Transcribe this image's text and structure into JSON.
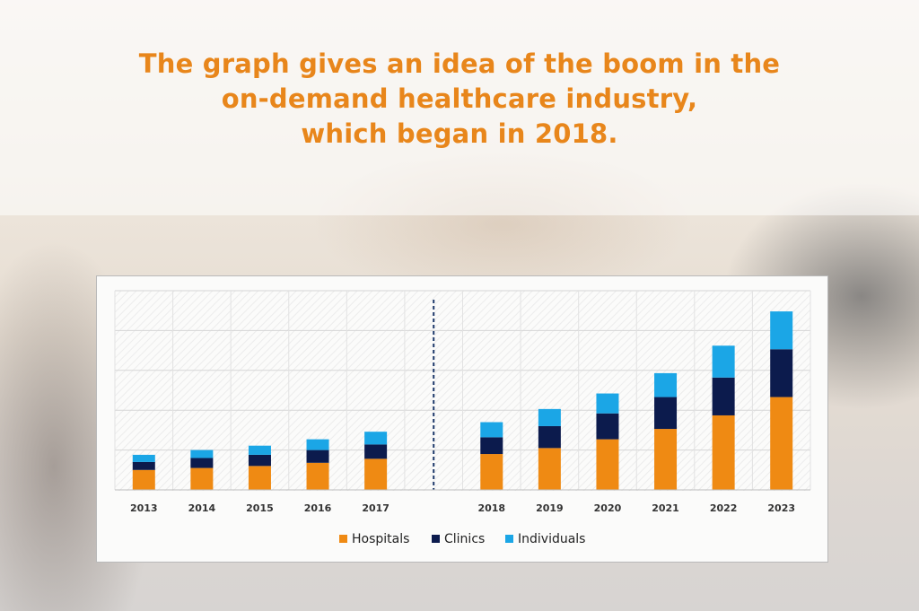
{
  "headline": {
    "line1": "The graph gives an idea of the boom in the",
    "line2": "on-demand healthcare industry,",
    "line3": "which began in 2018."
  },
  "colors": {
    "headline": "#e8861b",
    "hospitals": "#ef8a13",
    "clinics": "#0c1b4d",
    "individuals": "#1ba6e6",
    "divider": "#1f3a6b"
  },
  "chart_data": {
    "type": "bar",
    "stacked": true,
    "categories": [
      "2013",
      "2014",
      "2015",
      "2016",
      "2017",
      "2018",
      "2019",
      "2020",
      "2021",
      "2022",
      "2023"
    ],
    "series": [
      {
        "name": "Hospitals",
        "values": [
          0.5,
          0.55,
          0.6,
          0.68,
          0.78,
          0.9,
          1.05,
          1.27,
          1.53,
          1.87,
          2.33
        ]
      },
      {
        "name": "Clinics",
        "values": [
          0.2,
          0.25,
          0.28,
          0.32,
          0.36,
          0.42,
          0.55,
          0.65,
          0.8,
          0.95,
          1.2
        ]
      },
      {
        "name": "Individuals",
        "values": [
          0.18,
          0.2,
          0.23,
          0.27,
          0.32,
          0.38,
          0.43,
          0.5,
          0.6,
          0.8,
          0.95
        ]
      }
    ],
    "ylim": [
      0,
      5
    ],
    "grid": true,
    "divider_after": "2017",
    "legend": "bottom-center"
  }
}
